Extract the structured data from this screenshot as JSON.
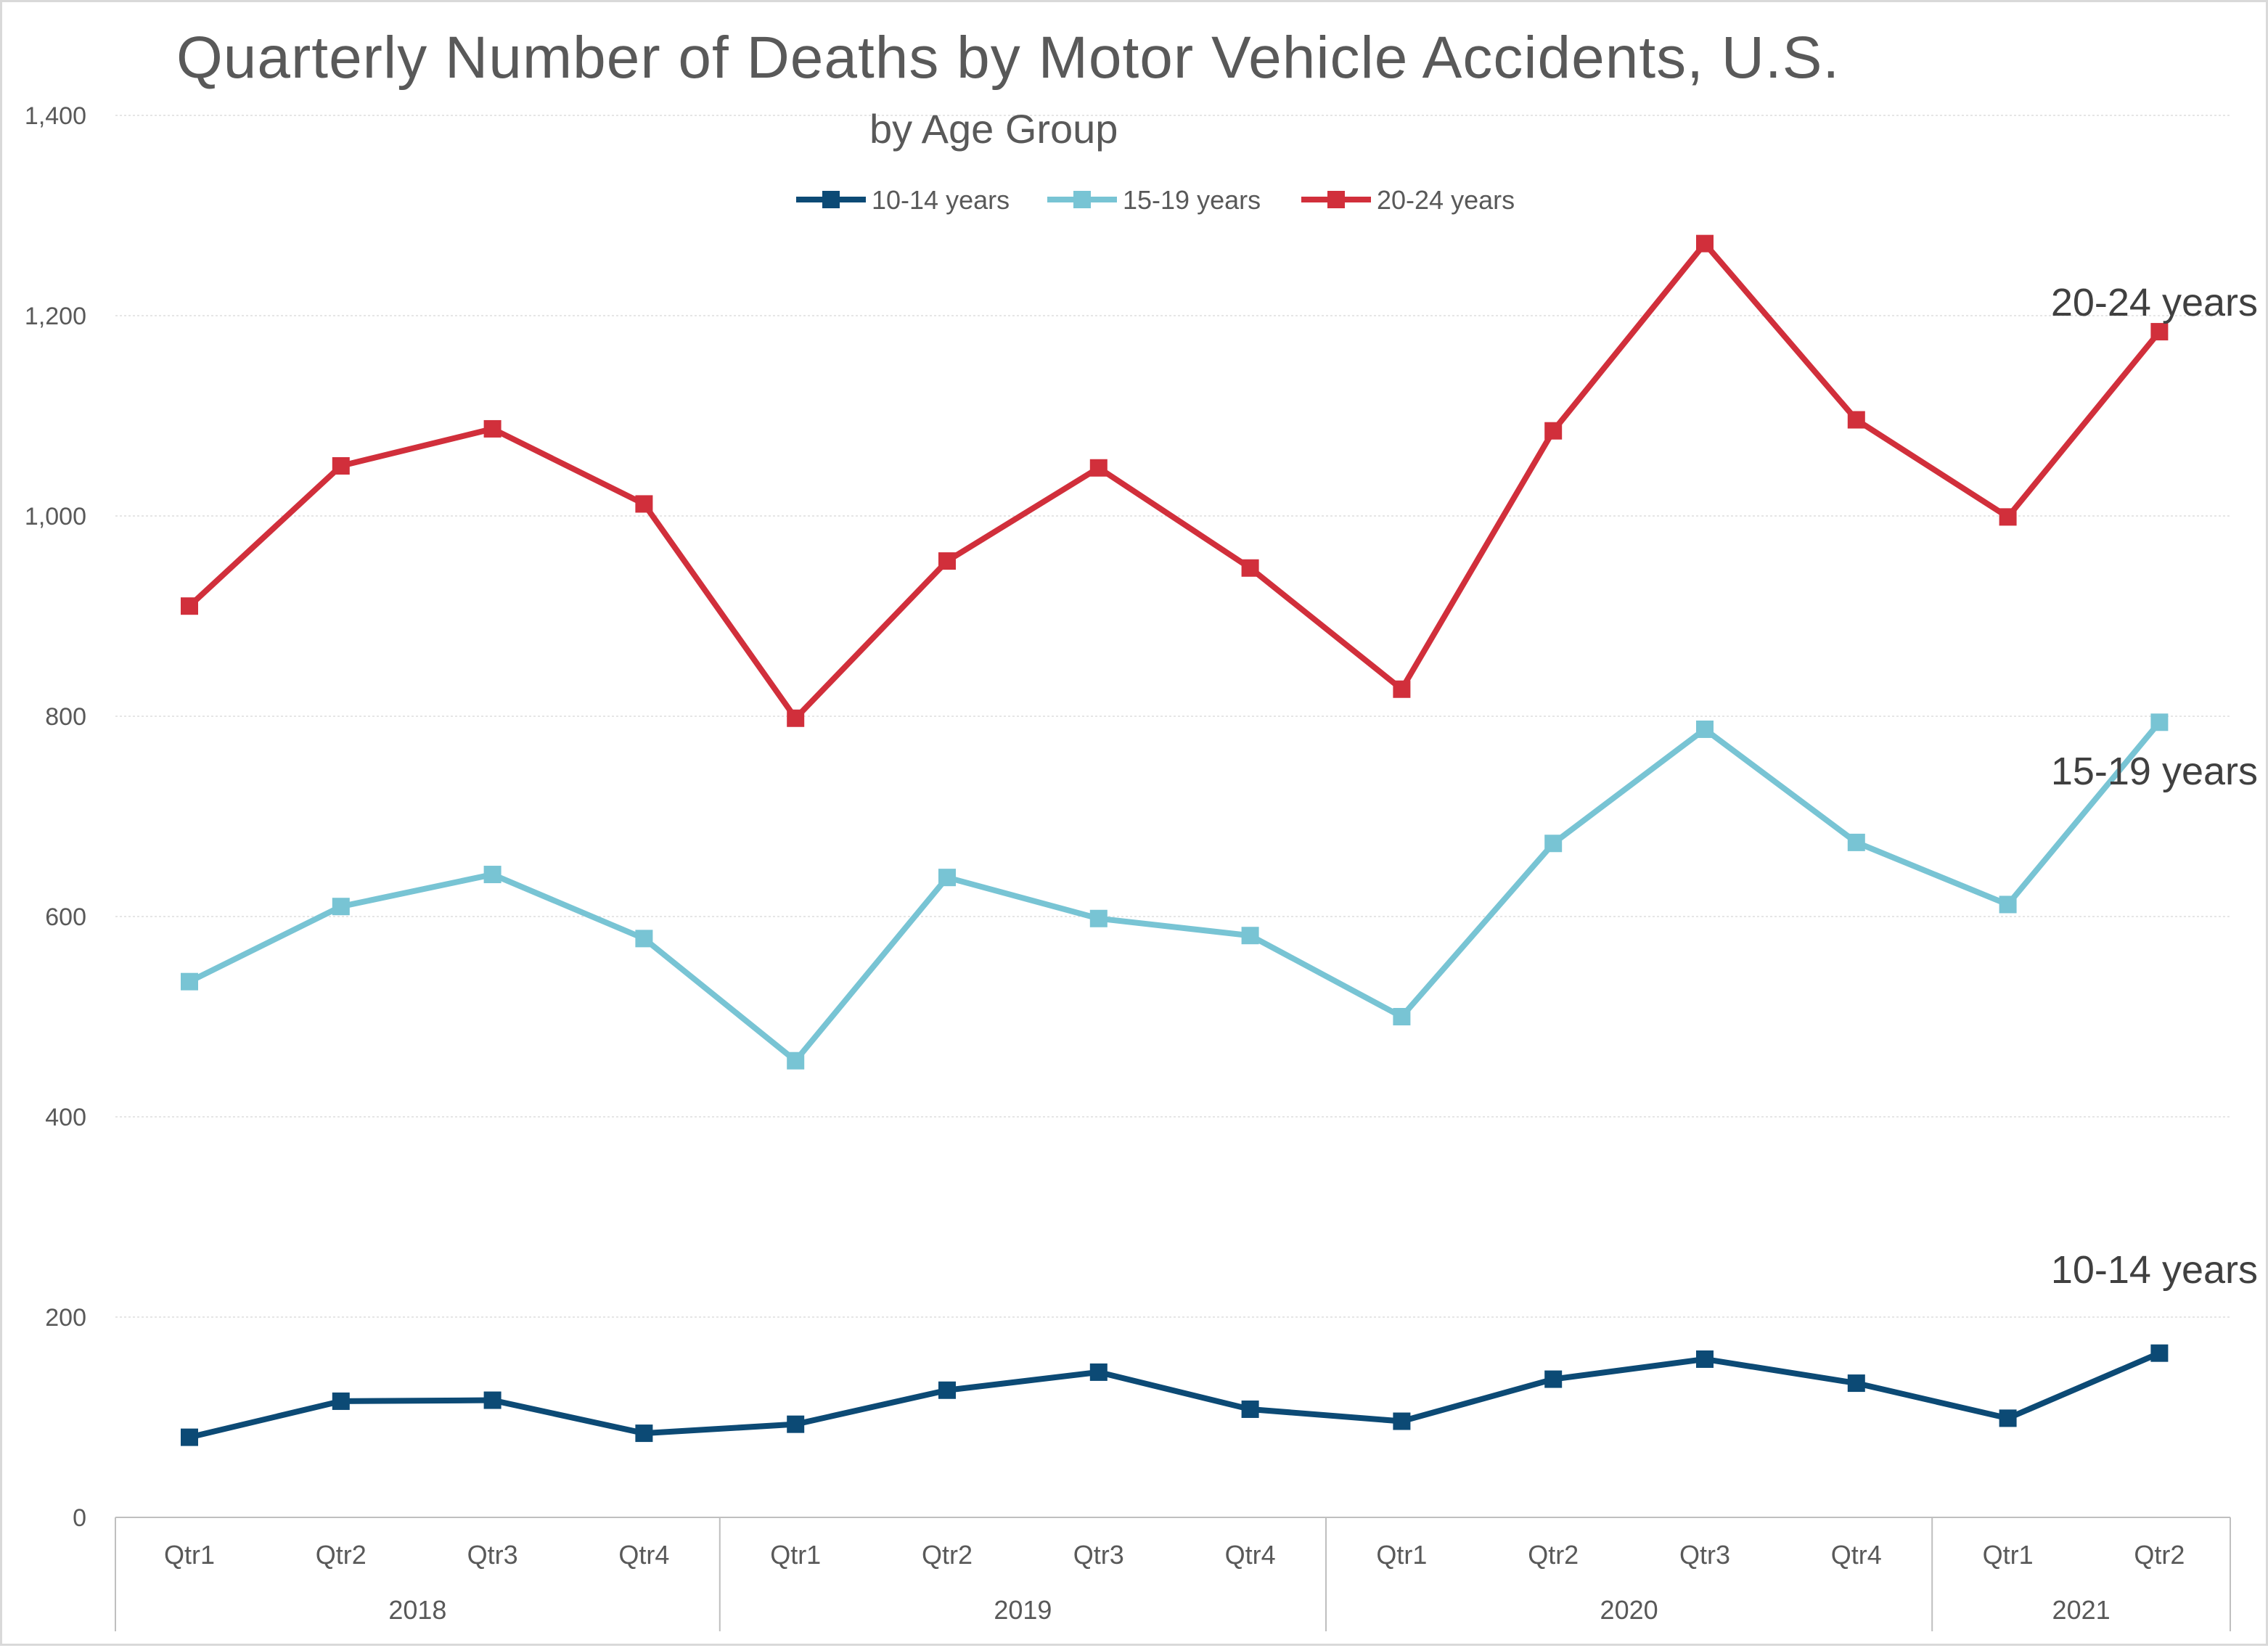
{
  "chart_data": {
    "type": "line",
    "title": "Quarterly Number of Deaths by Motor Vehicle Accidents, U.S.",
    "subtitle": "by Age Group",
    "xlabel": "",
    "ylabel": "",
    "ylim": [
      0,
      1400
    ],
    "yticks": [
      0,
      200,
      400,
      600,
      800,
      1000,
      1200,
      1400
    ],
    "ytick_labels": [
      "0",
      "200",
      "400",
      "600",
      "800",
      "1,000",
      "1,200",
      "1,400"
    ],
    "grid": true,
    "legend_position": "top",
    "categories": [
      "Qtr1",
      "Qtr2",
      "Qtr3",
      "Qtr4",
      "Qtr1",
      "Qtr2",
      "Qtr3",
      "Qtr4",
      "Qtr1",
      "Qtr2",
      "Qtr3",
      "Qtr4",
      "Qtr1",
      "Qtr2"
    ],
    "groups": [
      {
        "label": "2018",
        "count": 4
      },
      {
        "label": "2019",
        "count": 4
      },
      {
        "label": "2020",
        "count": 4
      },
      {
        "label": "2021",
        "count": 2
      }
    ],
    "series": [
      {
        "name": "10-14 years",
        "end_label": "10-14 years",
        "color": "#0c4a75",
        "values": [
          80,
          116,
          117,
          84,
          93,
          127,
          145,
          108,
          96,
          138,
          158,
          134,
          99,
          164
        ]
      },
      {
        "name": "15-19 years",
        "end_label": "15-19 years",
        "color": "#78c4d4",
        "values": [
          535,
          610,
          642,
          578,
          456,
          639,
          598,
          581,
          500,
          673,
          787,
          674,
          612,
          794
        ]
      },
      {
        "name": "20-24 years",
        "end_label": "20-24 years",
        "color": "#d12f3b",
        "values": [
          910,
          1050,
          1087,
          1012,
          798,
          955,
          1048,
          948,
          827,
          1085,
          1272,
          1096,
          999,
          1184
        ]
      }
    ]
  }
}
